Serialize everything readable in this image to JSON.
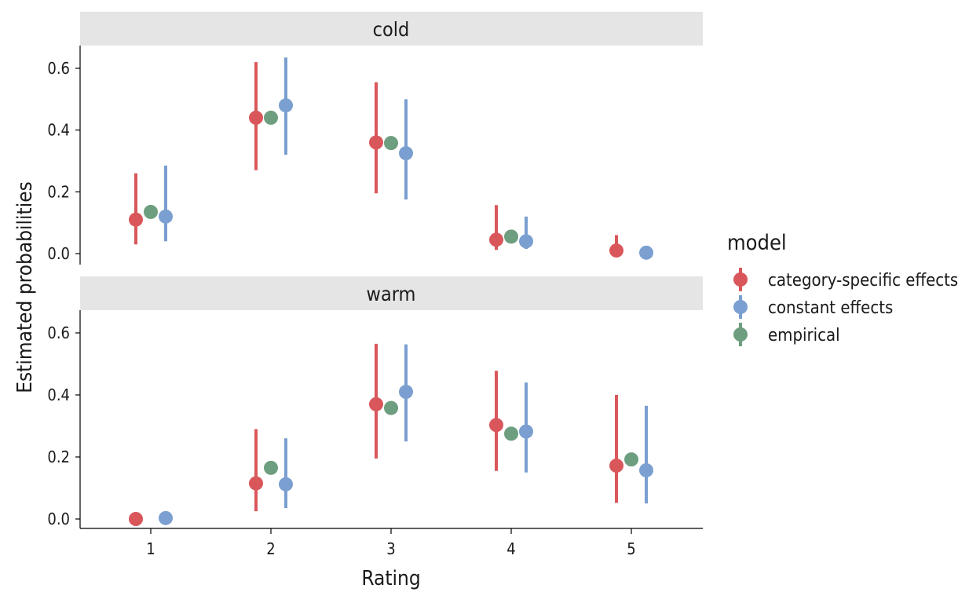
{
  "chart_data": {
    "type": "scatter",
    "xlabel": "Rating",
    "ylabel": "Estimated probabilities",
    "categories": [
      "1",
      "2",
      "3",
      "4",
      "5"
    ],
    "ylim": [
      -0.02,
      0.66
    ],
    "yticks": [
      "0.0",
      "0.2",
      "0.4",
      "0.6"
    ],
    "ytick_values": [
      0,
      0.2,
      0.4,
      0.6
    ],
    "legend": {
      "title": "model",
      "placement": "right",
      "entries": [
        "category-specific effects",
        "constant effects",
        "empirical"
      ]
    },
    "panels": [
      {
        "strip": "cold",
        "series": [
          {
            "name": "category-specific effects",
            "color": "#d9575b",
            "dodge": -1,
            "values": [
              0.11,
              0.44,
              0.36,
              0.045,
              0.01
            ],
            "lower": [
              0.03,
              0.27,
              0.195,
              0.012,
              0.001
            ],
            "upper": [
              0.26,
              0.62,
              0.555,
              0.157,
              0.06
            ]
          },
          {
            "name": "empirical",
            "color": "#6d9e7f",
            "dodge": 0,
            "values": [
              0.135,
              0.44,
              0.358,
              0.055,
              null
            ]
          },
          {
            "name": "constant effects",
            "color": "#7a9fd0",
            "dodge": 1,
            "values": [
              0.12,
              0.48,
              0.325,
              0.04,
              0.003
            ],
            "lower": [
              0.04,
              0.32,
              0.175,
              0.015,
              0.0
            ],
            "upper": [
              0.285,
              0.635,
              0.5,
              0.12,
              0.008
            ]
          }
        ]
      },
      {
        "strip": "warm",
        "series": [
          {
            "name": "category-specific effects",
            "color": "#d9575b",
            "dodge": -1,
            "values": [
              0.0,
              0.115,
              0.37,
              0.303,
              0.172
            ],
            "lower": [
              0.0,
              0.025,
              0.195,
              0.155,
              0.052
            ],
            "upper": [
              0.002,
              0.29,
              0.565,
              0.478,
              0.4
            ]
          },
          {
            "name": "empirical",
            "color": "#6d9e7f",
            "dodge": 0,
            "values": [
              null,
              0.165,
              0.358,
              0.275,
              0.192
            ]
          },
          {
            "name": "constant effects",
            "color": "#7a9fd0",
            "dodge": 1,
            "values": [
              0.003,
              0.112,
              0.41,
              0.282,
              0.157
            ],
            "lower": [
              0.0,
              0.035,
              0.25,
              0.15,
              0.05
            ],
            "upper": [
              0.008,
              0.26,
              0.563,
              0.44,
              0.365
            ]
          }
        ]
      }
    ]
  }
}
